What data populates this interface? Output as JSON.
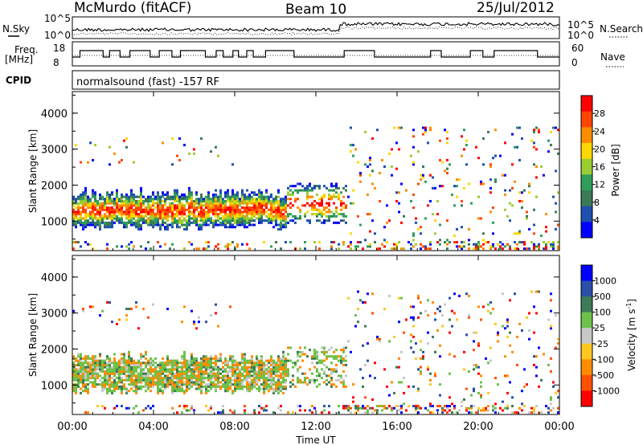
{
  "header": {
    "station": "McMurdo (fitACF)",
    "beam": "Beam 10",
    "date": "25/Jul/2012"
  },
  "status_panels": {
    "nsky_label": "N.Sky",
    "nsearch_label": "N.Search",
    "freq_label_line1": "Freq.",
    "freq_label_line2": "[MHz]",
    "nave_label": "Nave",
    "cpid_label": "CPID",
    "cpid_value": "normalsound (fast) -157 RF",
    "noise_ticks_left": [
      "10^5",
      "10^0"
    ],
    "noise_ticks_right": [
      "10^5",
      "10^0"
    ],
    "freq_ticks": [
      "18",
      "8"
    ],
    "nave_ticks": [
      "60",
      "0"
    ]
  },
  "colors": {
    "power_scale": [
      "#0000ff",
      "#1f4fb0",
      "#3a7a55",
      "#2f9e5a",
      "#9acd32",
      "#ffd700",
      "#ff8c00",
      "#ff4500",
      "#ff0000"
    ],
    "velocity_scale": [
      "#0000ff",
      "#2a4fa8",
      "#3d7a58",
      "#6cc24a",
      "#c8c8c8",
      "#ffc820",
      "#ff8c00",
      "#ff5000",
      "#ff0000"
    ]
  },
  "chart_data": [
    {
      "type": "heatmap",
      "title": "",
      "xlabel": "Time UT",
      "ylabel": "Slant Range [km]",
      "x_ticks": [
        "00:00",
        "04:00",
        "08:00",
        "12:00",
        "16:00",
        "20:00",
        "00:00"
      ],
      "y_ticks": [
        1000,
        2000,
        3000,
        4000
      ],
      "xlim": [
        0,
        24
      ],
      "ylim": [
        180,
        4600
      ],
      "colorbar": {
        "label": "Power [dB]",
        "ticks": [
          "28",
          "24",
          "20",
          "16",
          "12",
          "8",
          "4"
        ]
      }
    },
    {
      "type": "heatmap",
      "title": "",
      "xlabel": "Time UT",
      "ylabel": "Slant Range [km]",
      "x_ticks": [
        "00:00",
        "04:00",
        "08:00",
        "12:00",
        "16:00",
        "20:00",
        "00:00"
      ],
      "y_ticks": [
        1000,
        2000,
        3000,
        4000
      ],
      "xlim": [
        0,
        24
      ],
      "ylim": [
        180,
        4600
      ],
      "colorbar": {
        "label_text": "Velocity",
        "label_unit": "[m s",
        "label_sup": "-1",
        "label_close": "]",
        "ticks": [
          "1000",
          "500",
          "100",
          "25",
          "-25",
          "-100",
          "-500",
          "-1000"
        ]
      }
    }
  ]
}
